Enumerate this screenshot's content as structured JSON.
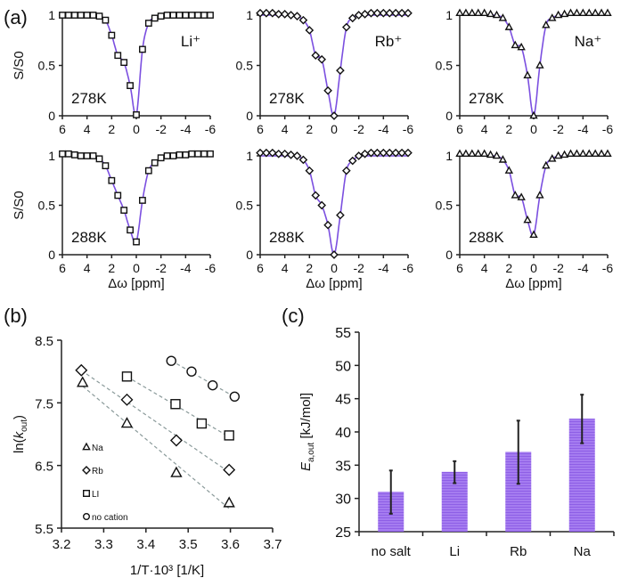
{
  "colors": {
    "fit": "#7b4fe0",
    "bar": "#a57cf0",
    "axis": "#222",
    "dash": "#8a9a9a"
  },
  "chart_data": [
    {
      "type": "line",
      "panel": "(a)",
      "ylabel": "S/S0",
      "xlabel": "Δω [ppm]",
      "xlim": [
        6,
        -6
      ],
      "ylim": [
        0,
        1
      ],
      "xticks": [
        "6",
        "4",
        "2",
        "0",
        "-2",
        "-4",
        "-6"
      ],
      "yticks": [
        "0",
        "0.5",
        "1"
      ],
      "x": [
        6,
        5.5,
        5,
        4.5,
        4,
        3.5,
        3,
        2.5,
        2,
        1.5,
        1,
        0.5,
        0,
        -0.5,
        -1,
        -1.5,
        -2,
        -2.5,
        -3,
        -3.5,
        -4,
        -4.5,
        -5,
        -5.5,
        -6
      ],
      "subplots": [
        {
          "ion": "Li⁺",
          "temp": "278K",
          "marker": "square",
          "row": 0,
          "col": 0,
          "values": [
            1,
            1,
            1,
            1,
            1,
            1,
            0.99,
            0.95,
            0.8,
            0.6,
            0.53,
            0.3,
            0.01,
            0.66,
            0.92,
            0.97,
            0.99,
            1,
            1,
            1,
            1,
            1,
            1,
            1,
            1
          ]
        },
        {
          "ion": "Rb⁺",
          "temp": "278K",
          "marker": "diamond",
          "row": 0,
          "col": 1,
          "values": [
            1.02,
            1.02,
            1.02,
            1.01,
            1.01,
            1,
            0.99,
            0.95,
            0.85,
            0.6,
            0.56,
            0.25,
            0,
            0.45,
            0.88,
            0.97,
            1,
            1.01,
            1.02,
            1.02,
            1.02,
            1.02,
            1.02,
            1.02,
            1.02
          ]
        },
        {
          "ion": "Na⁺",
          "temp": "278K",
          "marker": "triangle",
          "row": 0,
          "col": 2,
          "values": [
            1.02,
            1.02,
            1.02,
            1.02,
            1.02,
            1.01,
            1,
            0.97,
            0.88,
            0.7,
            0.68,
            0.4,
            0,
            0.5,
            0.9,
            0.97,
            1,
            1.01,
            1.02,
            1.02,
            1.02,
            1.02,
            1.02,
            1.02,
            1.02
          ]
        },
        {
          "ion": "",
          "temp": "288K",
          "marker": "square",
          "row": 1,
          "col": 0,
          "values": [
            1.02,
            1.02,
            1.01,
            1,
            1,
            1,
            0.97,
            0.9,
            0.75,
            0.6,
            0.45,
            0.25,
            0.13,
            0.55,
            0.85,
            0.93,
            0.98,
            1,
            1,
            1.01,
            1.01,
            1.02,
            1.02,
            1.02,
            1.02
          ]
        },
        {
          "ion": "",
          "temp": "288K",
          "marker": "diamond",
          "row": 1,
          "col": 1,
          "values": [
            1.03,
            1.03,
            1.03,
            1.02,
            1.02,
            1.01,
            1,
            0.96,
            0.85,
            0.6,
            0.5,
            0.3,
            0,
            0.4,
            0.85,
            0.95,
            1,
            1.02,
            1.03,
            1.03,
            1.03,
            1.03,
            1.03,
            1.03,
            1.03
          ]
        },
        {
          "ion": "",
          "temp": "288K",
          "marker": "triangle",
          "row": 1,
          "col": 2,
          "values": [
            1.02,
            1.02,
            1.02,
            1.02,
            1.02,
            1.01,
            1,
            0.96,
            0.85,
            0.6,
            0.58,
            0.35,
            0.2,
            0.6,
            0.9,
            0.97,
            1,
            1.01,
            1.02,
            1.02,
            1.02,
            1.02,
            1.02,
            1.02,
            1.02
          ]
        }
      ]
    },
    {
      "type": "scatter",
      "panel": "(b)",
      "ylabel": "ln(kout)",
      "xlabel": "1/T·10³ [1/K]",
      "xlim": [
        3.2,
        3.7
      ],
      "ylim": [
        5.5,
        8.5
      ],
      "xticks": [
        "3.2",
        "3.3",
        "3.4",
        "3.5",
        "3.6",
        "3.7"
      ],
      "yticks": [
        "5.5",
        "6.5",
        "7.5",
        "8.5"
      ],
      "legend": "bottom-left",
      "series": [
        {
          "name": "Na",
          "marker": "triangle",
          "x": [
            3.25,
            3.355,
            3.472,
            3.597
          ],
          "y": [
            7.82,
            7.17,
            6.38,
            5.9
          ]
        },
        {
          "name": "Rb",
          "marker": "diamond",
          "x": [
            3.247,
            3.355,
            3.472,
            3.597
          ],
          "y": [
            8.02,
            7.55,
            6.9,
            6.43
          ]
        },
        {
          "name": "LI",
          "marker": "square",
          "x": [
            3.355,
            3.47,
            3.532,
            3.597
          ],
          "y": [
            7.92,
            7.48,
            7.17,
            6.98
          ]
        },
        {
          "name": "no cation",
          "marker": "circle",
          "x": [
            3.46,
            3.508,
            3.558,
            3.61
          ],
          "y": [
            8.17,
            8.0,
            7.78,
            7.6
          ]
        }
      ]
    },
    {
      "type": "bar",
      "panel": "(c)",
      "ylabel": "Ea,out [kJ/mol]",
      "ylim": [
        25,
        55
      ],
      "yticks": [
        "25",
        "30",
        "35",
        "40",
        "45",
        "50",
        "55"
      ],
      "categories": [
        "no salt",
        "Li",
        "Rb",
        "Na"
      ],
      "values": [
        31,
        34,
        37,
        42
      ],
      "err_low": [
        27.7,
        32.3,
        32.2,
        38.3
      ],
      "err_high": [
        34.2,
        35.6,
        41.7,
        45.6
      ]
    }
  ]
}
